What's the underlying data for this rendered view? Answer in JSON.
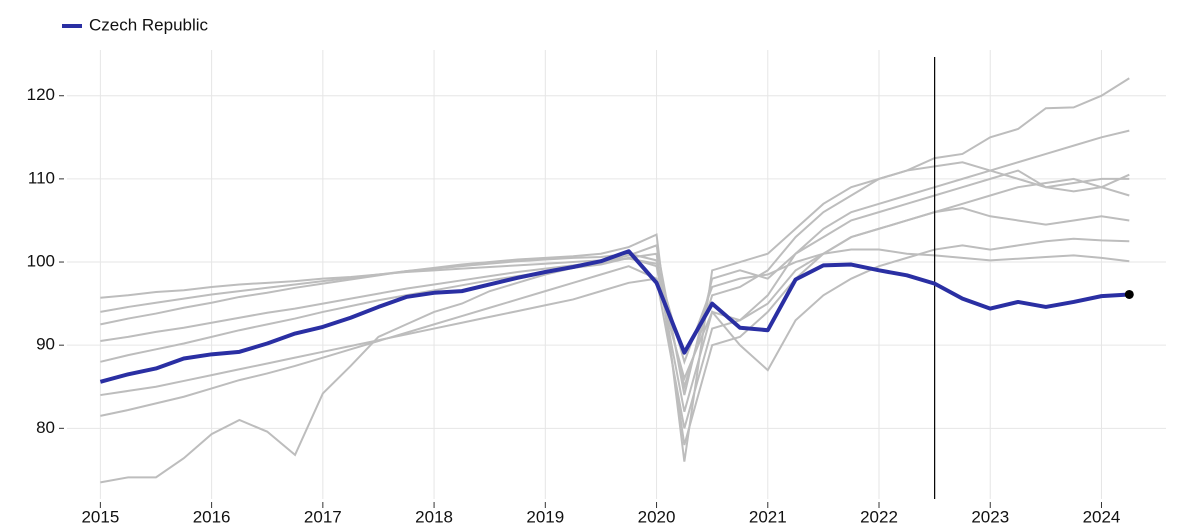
{
  "chart_data": {
    "type": "line",
    "x": [
      2015,
      2015.25,
      2015.5,
      2015.75,
      2016,
      2016.25,
      2016.5,
      2016.75,
      2017,
      2017.25,
      2017.5,
      2017.75,
      2018,
      2018.25,
      2018.5,
      2018.75,
      2019,
      2019.25,
      2019.5,
      2019.75,
      2020,
      2020.25,
      2020.5,
      2020.75,
      2021,
      2021.25,
      2021.5,
      2021.75,
      2022,
      2022.25,
      2022.5,
      2022.75,
      2023,
      2023.25,
      2023.5,
      2023.75,
      2024,
      2024.25
    ],
    "series": [
      {
        "name": "Czech Republic",
        "color": "#2a2fa3",
        "values": [
          85.6,
          86.5,
          87.2,
          88.4,
          88.9,
          89.2,
          90.2,
          91.4,
          92.2,
          93.3,
          94.6,
          95.8,
          96.3,
          96.5,
          97.3,
          98.1,
          98.8,
          99.4,
          100.1,
          101.3,
          97.5,
          89.1,
          95.0,
          92.1,
          91.8,
          97.9,
          99.6,
          99.7,
          99.0,
          98.4,
          97.4,
          95.6,
          94.4,
          95.2,
          94.6,
          95.2,
          95.9,
          96.1
        ]
      }
    ],
    "background_color": "#bdbdbd",
    "background_series": [
      [
        92.5,
        93.2,
        93.8,
        94.5,
        95.1,
        95.8,
        96.3,
        96.9,
        97.4,
        97.9,
        98.4,
        98.9,
        99.2,
        99.5,
        99.8,
        100.1,
        100.3,
        100.5,
        100.6,
        101,
        100.2,
        85,
        96,
        97,
        99,
        103,
        106,
        108,
        110,
        111,
        112.5,
        113,
        115,
        116,
        118.5,
        118.6,
        120,
        122.1
      ],
      [
        73.5,
        74.1,
        74.1,
        76.4,
        79.3,
        81,
        79.6,
        76.8,
        84.2,
        87.5,
        91,
        92.5,
        94,
        95,
        96.5,
        97.5,
        98.5,
        99.3,
        99.8,
        100.5,
        99.5,
        82,
        94,
        93,
        95,
        99,
        101,
        103,
        104,
        105,
        106,
        107,
        108,
        109,
        109.5,
        110,
        109,
        110.5
      ],
      [
        95.7,
        96,
        96.4,
        96.6,
        97,
        97.3,
        97.5,
        97.7,
        98,
        98.2,
        98.5,
        98.8,
        99,
        99.2,
        99.4,
        99.6,
        99.8,
        100,
        100.2,
        100.4,
        99.8,
        88,
        97,
        98,
        98.5,
        100,
        101,
        101.5,
        101.5,
        101,
        100.8,
        100.5,
        100.2,
        100.4,
        100.6,
        100.8,
        100.5,
        100.1
      ],
      [
        81.5,
        82.2,
        83,
        83.8,
        84.8,
        85.8,
        86.6,
        87.5,
        88.5,
        89.5,
        90.5,
        91.5,
        92.5,
        93.5,
        94.5,
        95.5,
        96.5,
        97.5,
        98.5,
        99.5,
        98,
        80,
        92,
        93,
        96,
        101,
        104,
        106,
        107,
        108,
        109,
        110,
        111,
        112,
        113,
        114,
        115,
        115.8
      ],
      [
        88,
        88.8,
        89.5,
        90.2,
        91,
        91.8,
        92.5,
        93.2,
        94,
        94.7,
        95.4,
        96,
        96.6,
        97.2,
        97.8,
        98.3,
        98.8,
        99.3,
        99.7,
        100.5,
        101,
        78,
        90,
        91,
        94,
        98,
        101,
        103,
        104,
        105,
        106,
        106.5,
        105.5,
        105,
        104.5,
        105,
        105.5,
        105
      ],
      [
        90.5,
        91,
        91.6,
        92.1,
        92.7,
        93.3,
        93.9,
        94.4,
        95,
        95.6,
        96.2,
        96.8,
        97.3,
        97.8,
        98.3,
        98.8,
        99.2,
        99.6,
        100,
        100.8,
        102,
        84,
        98,
        99,
        98,
        101,
        103,
        105,
        106,
        107,
        108,
        109,
        110,
        111,
        109,
        108.5,
        109,
        108
      ],
      [
        84,
        84.5,
        85,
        85.7,
        86.4,
        87.1,
        87.8,
        88.5,
        89.2,
        89.9,
        90.6,
        91.3,
        92,
        92.7,
        93.4,
        94.1,
        94.8,
        95.5,
        96.5,
        97.5,
        98,
        86,
        94,
        90,
        87,
        93,
        96,
        98,
        99.5,
        100.5,
        101.5,
        102,
        101.5,
        102,
        102.5,
        102.8,
        102.6,
        102.5
      ],
      [
        94,
        94.6,
        95.1,
        95.6,
        96.1,
        96.5,
        96.9,
        97.3,
        97.7,
        98.1,
        98.5,
        98.9,
        99.3,
        99.7,
        100,
        100.3,
        100.5,
        100.7,
        101,
        101.8,
        103.3,
        76,
        99,
        100,
        101,
        104,
        107,
        109,
        110,
        111,
        111.5,
        112,
        111,
        110,
        109,
        109.5,
        110,
        110
      ]
    ],
    "vline_x": 2022.5,
    "vline_color": "#000000",
    "end_marker_color": "#000000",
    "xlim": [
      2014.7,
      2024.58
    ],
    "xticks": [
      2015,
      2016,
      2017,
      2018,
      2019,
      2020,
      2021,
      2022,
      2023,
      2024
    ],
    "ylim": [
      71.5,
      125.5
    ],
    "yticks": [
      80,
      90,
      100,
      110,
      120
    ],
    "grid": true,
    "legend": "top-left"
  }
}
